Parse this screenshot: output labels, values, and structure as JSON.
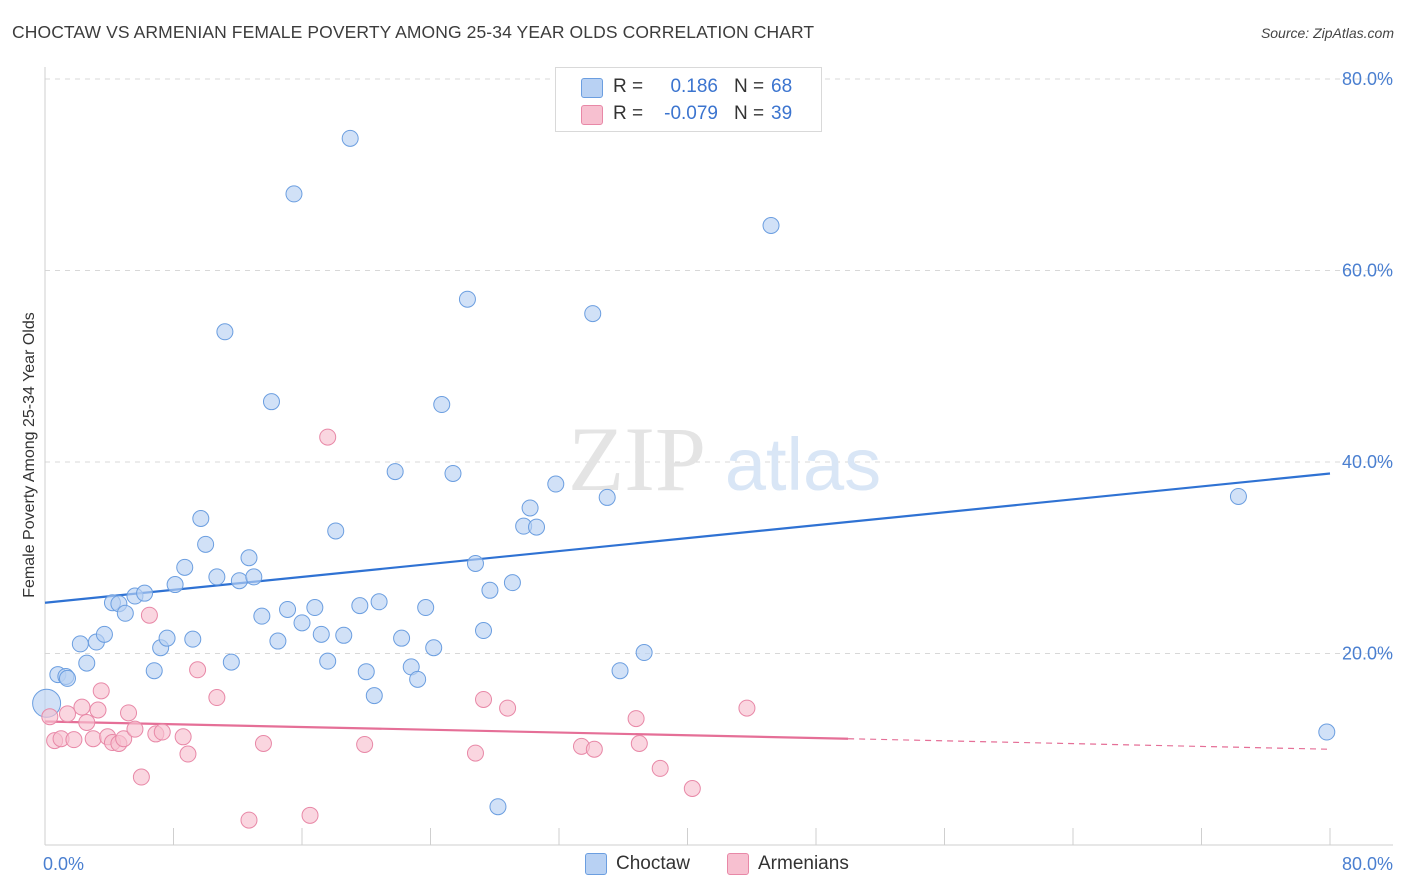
{
  "header": {
    "title": "CHOCTAW VS ARMENIAN FEMALE POVERTY AMONG 25-34 YEAR OLDS CORRELATION CHART",
    "source": "Source: ZipAtlas.com"
  },
  "watermark": {
    "zip": "ZIP",
    "atlas": "atlas"
  },
  "legend": {
    "rows": [
      {
        "r_label": "R =",
        "r_value": "0.186",
        "n_label": "N =",
        "n_value": "68"
      },
      {
        "r_label": "R =",
        "r_value": "-0.079",
        "n_label": "N =",
        "n_value": "39"
      }
    ]
  },
  "bottom_legend": {
    "choctaw": "Choctaw",
    "armenians": "Armenians"
  },
  "colors": {
    "choctaw_fill": "#b8d1f3",
    "choctaw_stroke": "#6b9ee0",
    "choctaw_line": "#2f72d3",
    "armenian_fill": "#f7c0d0",
    "armenian_stroke": "#e888a7",
    "armenian_line": "#e56f97",
    "tick_label": "#4a7fd0",
    "grid": "#d8d8d8"
  },
  "chart_data": {
    "type": "scatter",
    "title": "CHOCTAW VS ARMENIAN FEMALE POVERTY AMONG 25-34 YEAR OLDS CORRELATION CHART",
    "xlabel": "",
    "ylabel": "Female Poverty Among 25-34 Year Olds",
    "xlim": [
      0,
      80
    ],
    "ylim": [
      0,
      80
    ],
    "x_tick_labels": [
      "0.0%",
      "80.0%"
    ],
    "y_ticks": [
      20,
      40,
      60,
      80
    ],
    "y_tick_labels": [
      "20.0%",
      "40.0%",
      "60.0%",
      "80.0%"
    ],
    "grid": true,
    "legend_placement": "top-center",
    "series": [
      {
        "name": "Choctaw",
        "r": 0.186,
        "n": 68,
        "trend": {
          "x": [
            0,
            80
          ],
          "y": [
            25.3,
            38.8
          ]
        },
        "points": [
          [
            0.1,
            14.8
          ],
          [
            0.8,
            17.8
          ],
          [
            1.3,
            17.6
          ],
          [
            1.4,
            17.4
          ],
          [
            2.2,
            21.0
          ],
          [
            2.6,
            19.0
          ],
          [
            3.2,
            21.2
          ],
          [
            3.7,
            22.0
          ],
          [
            4.2,
            25.3
          ],
          [
            4.6,
            25.2
          ],
          [
            5.0,
            24.2
          ],
          [
            5.6,
            26.0
          ],
          [
            6.2,
            26.3
          ],
          [
            6.8,
            18.2
          ],
          [
            7.2,
            20.6
          ],
          [
            7.6,
            21.6
          ],
          [
            8.1,
            27.2
          ],
          [
            8.7,
            29.0
          ],
          [
            9.2,
            21.5
          ],
          [
            9.7,
            34.1
          ],
          [
            10.0,
            31.4
          ],
          [
            10.7,
            28.0
          ],
          [
            11.2,
            53.6
          ],
          [
            11.6,
            19.1
          ],
          [
            12.1,
            27.6
          ],
          [
            12.7,
            30.0
          ],
          [
            13.0,
            28.0
          ],
          [
            13.5,
            23.9
          ],
          [
            14.1,
            46.3
          ],
          [
            14.5,
            21.3
          ],
          [
            15.1,
            24.6
          ],
          [
            15.5,
            68.0
          ],
          [
            16.0,
            23.2
          ],
          [
            16.8,
            24.8
          ],
          [
            17.2,
            22.0
          ],
          [
            17.6,
            19.2
          ],
          [
            18.1,
            32.8
          ],
          [
            18.6,
            21.9
          ],
          [
            19.0,
            73.8
          ],
          [
            19.6,
            25.0
          ],
          [
            20.0,
            18.1
          ],
          [
            20.5,
            15.6
          ],
          [
            20.8,
            25.4
          ],
          [
            21.8,
            39.0
          ],
          [
            22.2,
            21.6
          ],
          [
            22.8,
            18.6
          ],
          [
            23.2,
            17.3
          ],
          [
            23.7,
            24.8
          ],
          [
            24.2,
            20.6
          ],
          [
            24.7,
            46.0
          ],
          [
            25.4,
            38.8
          ],
          [
            26.3,
            57.0
          ],
          [
            26.8,
            29.4
          ],
          [
            27.3,
            22.4
          ],
          [
            27.7,
            26.6
          ],
          [
            28.2,
            4.0
          ],
          [
            29.1,
            27.4
          ],
          [
            29.8,
            33.3
          ],
          [
            30.2,
            35.2
          ],
          [
            30.6,
            33.2
          ],
          [
            31.8,
            37.7
          ],
          [
            34.1,
            55.5
          ],
          [
            35.0,
            36.3
          ],
          [
            35.8,
            18.2
          ],
          [
            37.3,
            20.1
          ],
          [
            45.2,
            64.7
          ],
          [
            74.3,
            36.4
          ],
          [
            79.8,
            11.8
          ]
        ]
      },
      {
        "name": "Armenians",
        "r": -0.079,
        "n": 39,
        "trend": {
          "x": [
            0,
            50
          ],
          "y": [
            12.9,
            11.1
          ]
        },
        "trend_dashed": {
          "x": [
            50,
            80
          ],
          "y": [
            11.1,
            10.0
          ]
        },
        "points": [
          [
            0.3,
            13.4
          ],
          [
            0.6,
            10.9
          ],
          [
            1.0,
            11.1
          ],
          [
            1.4,
            13.7
          ],
          [
            1.8,
            11.0
          ],
          [
            2.3,
            14.4
          ],
          [
            2.6,
            12.8
          ],
          [
            3.0,
            11.1
          ],
          [
            3.3,
            14.1
          ],
          [
            3.5,
            16.1
          ],
          [
            3.9,
            11.3
          ],
          [
            4.2,
            10.7
          ],
          [
            4.6,
            10.6
          ],
          [
            4.9,
            11.1
          ],
          [
            5.2,
            13.8
          ],
          [
            5.6,
            12.1
          ],
          [
            6.0,
            7.1
          ],
          [
            6.5,
            24.0
          ],
          [
            6.9,
            11.6
          ],
          [
            7.3,
            11.8
          ],
          [
            8.6,
            11.3
          ],
          [
            8.9,
            9.5
          ],
          [
            9.5,
            18.3
          ],
          [
            10.7,
            15.4
          ],
          [
            12.7,
            2.6
          ],
          [
            13.6,
            10.6
          ],
          [
            16.5,
            3.1
          ],
          [
            17.6,
            42.6
          ],
          [
            19.9,
            10.5
          ],
          [
            26.8,
            9.6
          ],
          [
            27.3,
            15.2
          ],
          [
            28.8,
            14.3
          ],
          [
            33.4,
            10.3
          ],
          [
            34.2,
            10.0
          ],
          [
            36.8,
            13.2
          ],
          [
            37.0,
            10.6
          ],
          [
            38.3,
            8.0
          ],
          [
            40.3,
            5.9
          ],
          [
            43.7,
            14.3
          ]
        ]
      }
    ]
  }
}
